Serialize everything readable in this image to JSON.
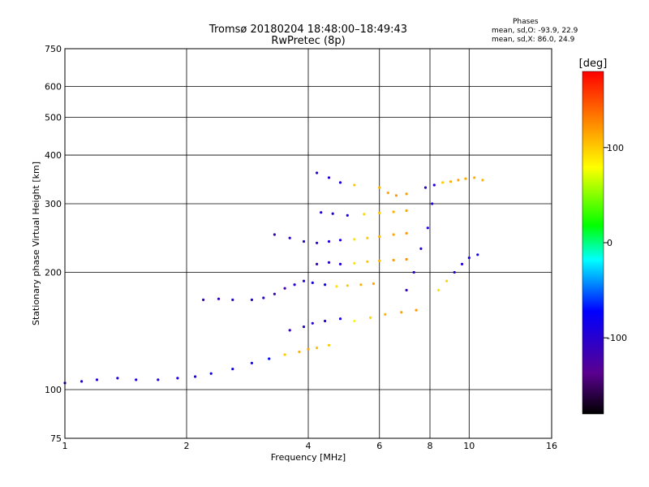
{
  "title_line1": "Tromsø 20180204 18:48:00–18:49:43",
  "title_line2": "RwPretec (8p)",
  "stats": {
    "header": "Phases",
    "o_line": "mean, sd,O: -93.9, 22.9",
    "x_line": "mean, sd,X:  86.0, 24.9"
  },
  "chart_data": {
    "type": "scatter",
    "xlabel": "Frequency [MHz]",
    "ylabel": "Stationary phase Virtual Height [km]",
    "xscale": "log",
    "yscale": "log",
    "xlim": [
      1,
      16
    ],
    "ylim": [
      75,
      750
    ],
    "xticks": [
      1,
      2,
      4,
      6,
      8,
      10,
      16
    ],
    "yticks": [
      75,
      100,
      200,
      300,
      400,
      500,
      600,
      750
    ],
    "grid": true,
    "colorbar": {
      "label": "[deg]",
      "range": [
        -180,
        180
      ],
      "ticks": [
        100,
        0,
        -100
      ],
      "colormap": "rainbow",
      "colors": [
        "#000000",
        "#5a0090",
        "#0000ff",
        "#00ffff",
        "#00ff00",
        "#ffff00",
        "#ff8000",
        "#ff0000"
      ]
    },
    "traces": [
      {
        "name": "",
        "x": [
          1.0,
          1.1,
          1.2,
          1.35,
          1.5,
          1.7,
          1.9,
          2.1,
          2.3,
          2.6,
          2.9,
          3.2,
          3.5,
          3.8,
          4.0,
          4.2,
          4.5
        ],
        "y": [
          104,
          105,
          106,
          107,
          106,
          106,
          107,
          108,
          110,
          113,
          117,
          120,
          123,
          125,
          127,
          128,
          130
        ],
        "phase": [
          -90,
          -92,
          -95,
          -95,
          -93,
          -95,
          -92,
          -90,
          -88,
          -80,
          -75,
          -70,
          100,
          110,
          115,
          105,
          100
        ]
      },
      {
        "name": "",
        "x": [
          2.2,
          2.4,
          2.6,
          2.9,
          3.1,
          3.3,
          3.5,
          3.7,
          3.9,
          4.1,
          4.4,
          4.7,
          5.0,
          5.4,
          5.8
        ],
        "y": [
          170,
          171,
          170,
          170,
          172,
          176,
          182,
          186,
          190,
          188,
          186,
          184,
          185,
          186,
          187
        ],
        "phase": [
          -110,
          -105,
          -100,
          -98,
          -105,
          -115,
          -120,
          -100,
          -95,
          -90,
          -80,
          90,
          100,
          110,
          115
        ]
      },
      {
        "name": "",
        "x": [
          3.6,
          3.9,
          4.1,
          4.4,
          4.8,
          5.2,
          5.7,
          6.2,
          6.8,
          7.4
        ],
        "y": [
          142,
          145,
          148,
          150,
          152,
          150,
          153,
          156,
          158,
          160
        ],
        "phase": [
          -110,
          -105,
          -100,
          -95,
          -90,
          80,
          95,
          110,
          115,
          120
        ]
      },
      {
        "name": "",
        "x": [
          3.3,
          3.6,
          3.9,
          4.2,
          4.5,
          4.8,
          5.2,
          5.6,
          6.0,
          6.5,
          7.0
        ],
        "y": [
          250,
          245,
          240,
          238,
          240,
          242,
          243,
          245,
          247,
          250,
          252
        ],
        "phase": [
          -110,
          -105,
          -100,
          -95,
          -92,
          -88,
          90,
          100,
          110,
          115,
          120
        ]
      },
      {
        "name": "",
        "x": [
          4.2,
          4.5,
          4.8,
          5.2,
          5.6,
          6.0,
          6.5,
          7.0
        ],
        "y": [
          210,
          212,
          210,
          211,
          213,
          214,
          215,
          216
        ],
        "phase": [
          -110,
          -100,
          -95,
          90,
          100,
          110,
          118,
          122
        ]
      },
      {
        "name": "",
        "x": [
          4.3,
          4.6,
          5.0,
          5.5,
          6.0,
          6.5,
          7.0
        ],
        "y": [
          285,
          283,
          280,
          282,
          284,
          286,
          288
        ],
        "phase": [
          -100,
          -95,
          -90,
          95,
          105,
          110,
          115
        ]
      },
      {
        "name": "",
        "x": [
          4.2,
          4.5,
          4.8,
          5.2,
          6.0,
          6.3,
          6.6,
          7.0
        ],
        "y": [
          360,
          350,
          340,
          335,
          330,
          320,
          315,
          318
        ],
        "phase": [
          -100,
          -95,
          -90,
          100,
          110,
          115,
          120,
          118
        ]
      },
      {
        "name": "",
        "x": [
          7.8,
          8.2,
          8.6,
          9.0,
          9.4,
          9.8,
          10.3,
          10.8
        ],
        "y": [
          330,
          335,
          340,
          342,
          345,
          348,
          350,
          345
        ],
        "phase": [
          -100,
          -95,
          100,
          110,
          115,
          112,
          110,
          108
        ]
      },
      {
        "name": "",
        "x": [
          8.4,
          8.8,
          9.2,
          9.6,
          10.0,
          10.5
        ],
        "y": [
          180,
          190,
          200,
          210,
          218,
          222
        ],
        "phase": [
          90,
          95,
          -100,
          -95,
          -90,
          -85
        ]
      },
      {
        "name": "",
        "x": [
          7.0,
          7.3,
          7.6,
          7.9,
          8.1
        ],
        "y": [
          180,
          200,
          230,
          260,
          300
        ],
        "phase": [
          -110,
          -105,
          -100,
          -95,
          -90
        ]
      }
    ]
  }
}
